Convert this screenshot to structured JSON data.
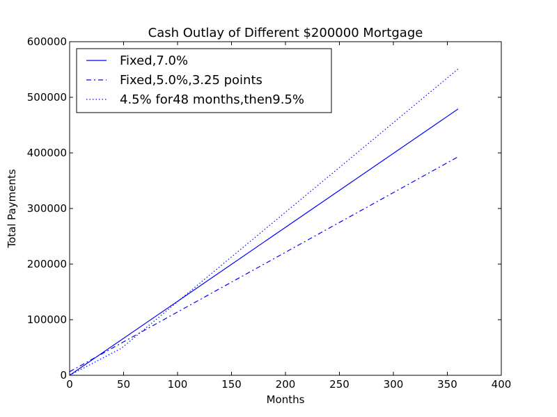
{
  "chart_data": {
    "type": "line",
    "title": "Cash Outlay of Different $200000 Mortgage",
    "xlabel": "Months",
    "ylabel": "Total Payments",
    "xlim": [
      0,
      400
    ],
    "ylim": [
      0,
      600000
    ],
    "xticks": [
      "0",
      "50",
      "100",
      "150",
      "200",
      "250",
      "300",
      "350",
      "400"
    ],
    "yticks": [
      "0",
      "100000",
      "200000",
      "300000",
      "400000",
      "500000",
      "600000"
    ],
    "grid": false,
    "legend_position": "top-left",
    "series": [
      {
        "name": "Fixed,7.0%",
        "style": "solid",
        "color": "#0000ff",
        "x": [
          0,
          360
        ],
        "y": [
          0,
          479017
        ]
      },
      {
        "name": "Fixed,5.0%,3.25 points",
        "style": "dashdot",
        "color": "#0000ff",
        "x": [
          0,
          360
        ],
        "y": [
          6500,
          393017
        ]
      },
      {
        "name": "4.5% for48 months,then9.5%",
        "style": "dotted",
        "color": "#0000ff",
        "x": [
          0,
          48,
          360
        ],
        "y": [
          0,
          48636,
          551000
        ]
      }
    ]
  }
}
